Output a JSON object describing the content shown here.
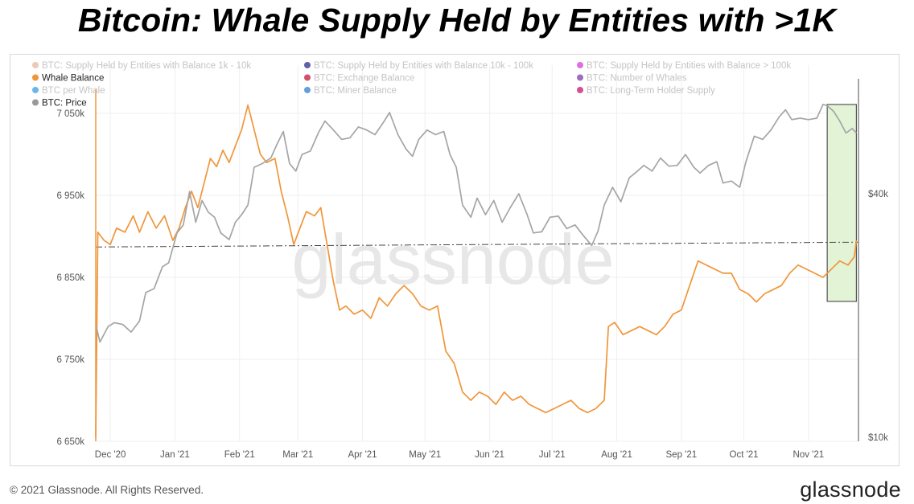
{
  "header": {
    "title": "Bitcoin: Whale Supply Held by Entities with >1K"
  },
  "footer": {
    "copyright": "© 2021 Glassnode. All Rights Reserved.",
    "brand": "glassnode"
  },
  "watermark": "glassnode",
  "colors": {
    "whale": "#f0963a",
    "price": "#a5a5a5",
    "highlight_fill": "#e3f3d6",
    "highlight_stroke": "#555555"
  },
  "chart_data": {
    "type": "line",
    "x_range": [
      "2020-11-24",
      "2021-11-25"
    ],
    "x_ticks": [
      {
        "label": "Dec '20",
        "date": "2020-12-01"
      },
      {
        "label": "Jan '21",
        "date": "2021-01-01"
      },
      {
        "label": "Feb '21",
        "date": "2021-02-01"
      },
      {
        "label": "Mar '21",
        "date": "2021-03-01"
      },
      {
        "label": "Apr '21",
        "date": "2021-04-01"
      },
      {
        "label": "May '21",
        "date": "2021-05-01"
      },
      {
        "label": "Jun '21",
        "date": "2021-06-01"
      },
      {
        "label": "Jul '21",
        "date": "2021-07-01"
      },
      {
        "label": "Aug '21",
        "date": "2021-08-01"
      },
      {
        "label": "Sep '21",
        "date": "2021-09-01"
      },
      {
        "label": "Oct '21",
        "date": "2021-10-01"
      },
      {
        "label": "Nov '21",
        "date": "2021-11-01"
      }
    ],
    "y_left": {
      "min": 6650000,
      "max": 7050000,
      "ticks": [
        {
          "label": "6 650k",
          "value": 6650000
        },
        {
          "label": "6 750k",
          "value": 6750000
        },
        {
          "label": "6 850k",
          "value": 6850000
        },
        {
          "label": "6 950k",
          "value": 6950000
        },
        {
          "label": "7 050k",
          "value": 7050000
        }
      ]
    },
    "y_right": {
      "scale": "log",
      "ticks": [
        {
          "label": "$10k",
          "value": 10000
        },
        {
          "label": "$40k",
          "value": 40000
        }
      ]
    },
    "legend": [
      {
        "label": "BTC: Supply Held by Entities with Balance 1k - 10k",
        "color": "#e6b7a0",
        "active": false
      },
      {
        "label": "BTC: Supply Held by Entities with Balance 10k - 100k",
        "color": "#2b2e8c",
        "active": false
      },
      {
        "label": "BTC: Supply Held by Entities with Balance > 100k",
        "color": "#d63ed6",
        "active": false
      },
      {
        "label": "Whale Balance",
        "color": "#f0963a",
        "active": true
      },
      {
        "label": "BTC: Exchange Balance",
        "color": "#c4163a",
        "active": false
      },
      {
        "label": "BTC: Number of Whales",
        "color": "#7b3fa8",
        "active": false
      },
      {
        "label": "BTC per Whale",
        "color": "#3aa0e0",
        "active": false
      },
      {
        "label": "BTC: Miner Balance",
        "color": "#2f7fd0",
        "active": false
      },
      {
        "label": "BTC: Long-Term Holder Supply",
        "color": "#c4166e",
        "active": false
      },
      {
        "label": "BTC: Price",
        "color": "#999999",
        "active": true
      }
    ],
    "reference_line": {
      "value": 6887000,
      "style": "dash-dot"
    },
    "highlight_range": {
      "from": "2021-11-10",
      "to": "2021-11-24"
    },
    "series": [
      {
        "name": "Whale Balance",
        "axis": "left",
        "color": "#f0963a",
        "points": [
          [
            "2020-11-24",
            6655000
          ],
          [
            "2020-11-25",
            6905000
          ],
          [
            "2020-11-28",
            6895000
          ],
          [
            "2020-12-01",
            6890000
          ],
          [
            "2020-12-04",
            6910000
          ],
          [
            "2020-12-08",
            6905000
          ],
          [
            "2020-12-12",
            6925000
          ],
          [
            "2020-12-15",
            6905000
          ],
          [
            "2020-12-19",
            6930000
          ],
          [
            "2020-12-23",
            6910000
          ],
          [
            "2020-12-27",
            6925000
          ],
          [
            "2020-12-31",
            6895000
          ],
          [
            "2021-01-03",
            6910000
          ],
          [
            "2021-01-06",
            6935000
          ],
          [
            "2021-01-09",
            6955000
          ],
          [
            "2021-01-12",
            6935000
          ],
          [
            "2021-01-15",
            6965000
          ],
          [
            "2021-01-18",
            6995000
          ],
          [
            "2021-01-21",
            6985000
          ],
          [
            "2021-01-24",
            7005000
          ],
          [
            "2021-01-27",
            6990000
          ],
          [
            "2021-01-30",
            7010000
          ],
          [
            "2021-02-02",
            7030000
          ],
          [
            "2021-02-05",
            7060000
          ],
          [
            "2021-02-08",
            7030000
          ],
          [
            "2021-02-11",
            7000000
          ],
          [
            "2021-02-14",
            6990000
          ],
          [
            "2021-02-18",
            6995000
          ],
          [
            "2021-02-21",
            6955000
          ],
          [
            "2021-02-24",
            6925000
          ],
          [
            "2021-02-27",
            6890000
          ],
          [
            "2021-03-02",
            6910000
          ],
          [
            "2021-03-05",
            6930000
          ],
          [
            "2021-03-09",
            6925000
          ],
          [
            "2021-03-12",
            6935000
          ],
          [
            "2021-03-15",
            6890000
          ],
          [
            "2021-03-18",
            6845000
          ],
          [
            "2021-03-21",
            6810000
          ],
          [
            "2021-03-24",
            6815000
          ],
          [
            "2021-03-28",
            6805000
          ],
          [
            "2021-04-01",
            6810000
          ],
          [
            "2021-04-05",
            6800000
          ],
          [
            "2021-04-09",
            6825000
          ],
          [
            "2021-04-13",
            6815000
          ],
          [
            "2021-04-17",
            6830000
          ],
          [
            "2021-04-21",
            6840000
          ],
          [
            "2021-04-25",
            6830000
          ],
          [
            "2021-04-29",
            6815000
          ],
          [
            "2021-05-03",
            6810000
          ],
          [
            "2021-05-07",
            6815000
          ],
          [
            "2021-05-11",
            6760000
          ],
          [
            "2021-05-15",
            6745000
          ],
          [
            "2021-05-19",
            6710000
          ],
          [
            "2021-05-23",
            6700000
          ],
          [
            "2021-05-27",
            6710000
          ],
          [
            "2021-05-31",
            6705000
          ],
          [
            "2021-06-04",
            6695000
          ],
          [
            "2021-06-08",
            6710000
          ],
          [
            "2021-06-12",
            6700000
          ],
          [
            "2021-06-16",
            6705000
          ],
          [
            "2021-06-20",
            6695000
          ],
          [
            "2021-06-24",
            6690000
          ],
          [
            "2021-06-28",
            6685000
          ],
          [
            "2021-07-02",
            6690000
          ],
          [
            "2021-07-06",
            6695000
          ],
          [
            "2021-07-10",
            6700000
          ],
          [
            "2021-07-14",
            6690000
          ],
          [
            "2021-07-18",
            6685000
          ],
          [
            "2021-07-22",
            6690000
          ],
          [
            "2021-07-26",
            6700000
          ],
          [
            "2021-07-28",
            6790000
          ],
          [
            "2021-07-31",
            6795000
          ],
          [
            "2021-08-04",
            6780000
          ],
          [
            "2021-08-08",
            6785000
          ],
          [
            "2021-08-12",
            6790000
          ],
          [
            "2021-08-16",
            6785000
          ],
          [
            "2021-08-20",
            6780000
          ],
          [
            "2021-08-24",
            6790000
          ],
          [
            "2021-08-28",
            6805000
          ],
          [
            "2021-09-01",
            6810000
          ],
          [
            "2021-09-05",
            6840000
          ],
          [
            "2021-09-09",
            6870000
          ],
          [
            "2021-09-13",
            6865000
          ],
          [
            "2021-09-17",
            6860000
          ],
          [
            "2021-09-21",
            6855000
          ],
          [
            "2021-09-25",
            6855000
          ],
          [
            "2021-09-29",
            6835000
          ],
          [
            "2021-10-03",
            6830000
          ],
          [
            "2021-10-07",
            6820000
          ],
          [
            "2021-10-11",
            6830000
          ],
          [
            "2021-10-15",
            6835000
          ],
          [
            "2021-10-19",
            6840000
          ],
          [
            "2021-10-23",
            6855000
          ],
          [
            "2021-10-27",
            6865000
          ],
          [
            "2021-10-31",
            6860000
          ],
          [
            "2021-11-04",
            6855000
          ],
          [
            "2021-11-08",
            6850000
          ],
          [
            "2021-11-12",
            6860000
          ],
          [
            "2021-11-16",
            6870000
          ],
          [
            "2021-11-20",
            6865000
          ],
          [
            "2021-11-23",
            6875000
          ],
          [
            "2021-11-24",
            6895000
          ]
        ]
      },
      {
        "name": "BTC: Price",
        "axis": "right",
        "color": "#a5a5a5",
        "points": [
          [
            "2020-11-24",
            19000
          ],
          [
            "2020-11-26",
            17200
          ],
          [
            "2020-11-30",
            18800
          ],
          [
            "2020-12-03",
            19200
          ],
          [
            "2020-12-07",
            19000
          ],
          [
            "2020-12-11",
            18200
          ],
          [
            "2020-12-15",
            19400
          ],
          [
            "2020-12-18",
            22800
          ],
          [
            "2020-12-22",
            23300
          ],
          [
            "2020-12-26",
            26400
          ],
          [
            "2020-12-29",
            27000
          ],
          [
            "2021-01-02",
            32000
          ],
          [
            "2021-01-05",
            33500
          ],
          [
            "2021-01-08",
            40500
          ],
          [
            "2021-01-11",
            34000
          ],
          [
            "2021-01-14",
            38500
          ],
          [
            "2021-01-17",
            36000
          ],
          [
            "2021-01-20",
            35000
          ],
          [
            "2021-01-23",
            32000
          ],
          [
            "2021-01-27",
            30800
          ],
          [
            "2021-01-30",
            34000
          ],
          [
            "2021-02-02",
            35500
          ],
          [
            "2021-02-05",
            37500
          ],
          [
            "2021-02-08",
            46500
          ],
          [
            "2021-02-12",
            47500
          ],
          [
            "2021-02-16",
            49000
          ],
          [
            "2021-02-19",
            53000
          ],
          [
            "2021-02-22",
            57000
          ],
          [
            "2021-02-25",
            47500
          ],
          [
            "2021-02-28",
            45500
          ],
          [
            "2021-03-03",
            50000
          ],
          [
            "2021-03-07",
            51000
          ],
          [
            "2021-03-11",
            56800
          ],
          [
            "2021-03-14",
            60500
          ],
          [
            "2021-03-18",
            57500
          ],
          [
            "2021-03-22",
            54500
          ],
          [
            "2021-03-26",
            55000
          ],
          [
            "2021-03-30",
            58500
          ],
          [
            "2021-04-03",
            57500
          ],
          [
            "2021-04-07",
            56000
          ],
          [
            "2021-04-11",
            60000
          ],
          [
            "2021-04-14",
            63500
          ],
          [
            "2021-04-18",
            56000
          ],
          [
            "2021-04-22",
            51500
          ],
          [
            "2021-04-25",
            49500
          ],
          [
            "2021-04-28",
            54500
          ],
          [
            "2021-05-02",
            57500
          ],
          [
            "2021-05-06",
            56000
          ],
          [
            "2021-05-10",
            57000
          ],
          [
            "2021-05-13",
            50000
          ],
          [
            "2021-05-16",
            46500
          ],
          [
            "2021-05-19",
            37500
          ],
          [
            "2021-05-23",
            35000
          ],
          [
            "2021-05-26",
            39000
          ],
          [
            "2021-05-30",
            35500
          ],
          [
            "2021-06-03",
            38500
          ],
          [
            "2021-06-07",
            34000
          ],
          [
            "2021-06-11",
            37000
          ],
          [
            "2021-06-15",
            40000
          ],
          [
            "2021-06-19",
            35500
          ],
          [
            "2021-06-22",
            32000
          ],
          [
            "2021-06-26",
            32200
          ],
          [
            "2021-06-30",
            35000
          ],
          [
            "2021-07-04",
            35200
          ],
          [
            "2021-07-08",
            32800
          ],
          [
            "2021-07-12",
            33500
          ],
          [
            "2021-07-16",
            31500
          ],
          [
            "2021-07-20",
            29800
          ],
          [
            "2021-07-23",
            32300
          ],
          [
            "2021-07-26",
            37500
          ],
          [
            "2021-07-30",
            41500
          ],
          [
            "2021-08-03",
            38200
          ],
          [
            "2021-08-07",
            43800
          ],
          [
            "2021-08-11",
            45500
          ],
          [
            "2021-08-14",
            47000
          ],
          [
            "2021-08-18",
            45500
          ],
          [
            "2021-08-22",
            49000
          ],
          [
            "2021-08-26",
            46800
          ],
          [
            "2021-08-30",
            47000
          ],
          [
            "2021-09-03",
            50000
          ],
          [
            "2021-09-07",
            46500
          ],
          [
            "2021-09-10",
            45000
          ],
          [
            "2021-09-14",
            47000
          ],
          [
            "2021-09-18",
            48000
          ],
          [
            "2021-09-21",
            42500
          ],
          [
            "2021-09-25",
            43000
          ],
          [
            "2021-09-29",
            41500
          ],
          [
            "2021-10-02",
            48000
          ],
          [
            "2021-10-06",
            55500
          ],
          [
            "2021-10-10",
            54500
          ],
          [
            "2021-10-14",
            57500
          ],
          [
            "2021-10-18",
            62000
          ],
          [
            "2021-10-21",
            64500
          ],
          [
            "2021-10-24",
            61000
          ],
          [
            "2021-10-28",
            61500
          ],
          [
            "2021-11-01",
            61000
          ],
          [
            "2021-11-05",
            61500
          ],
          [
            "2021-11-08",
            66500
          ],
          [
            "2021-11-10",
            66000
          ],
          [
            "2021-11-13",
            64000
          ],
          [
            "2021-11-16",
            60500
          ],
          [
            "2021-11-19",
            56500
          ],
          [
            "2021-11-22",
            58000
          ],
          [
            "2021-11-24",
            56500
          ]
        ]
      }
    ]
  }
}
